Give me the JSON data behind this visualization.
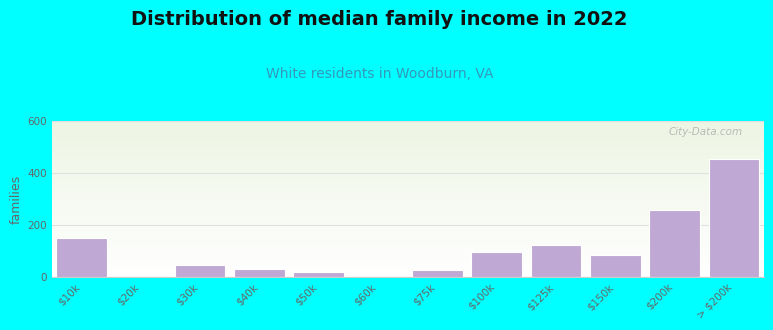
{
  "title": "Distribution of median family income in 2022",
  "subtitle": "White residents in Woodburn, VA",
  "categories": [
    "$10k",
    "$20k",
    "$30k",
    "$40k",
    "$50k",
    "$60k",
    "$75k",
    "$100k",
    "$125k",
    "$150k",
    "$200k",
    "> $200k"
  ],
  "values": [
    150,
    0,
    45,
    28,
    18,
    0,
    25,
    95,
    120,
    85,
    258,
    452
  ],
  "bar_color": "#c0a8d4",
  "bar_edge_color": "#ffffff",
  "background_outer": "#00ffff",
  "title_color": "#111111",
  "subtitle_color": "#3399bb",
  "ylabel": "families",
  "ylim": [
    0,
    600
  ],
  "yticks": [
    0,
    200,
    400,
    600
  ],
  "grid_color": "#e0e0e0",
  "watermark": "City-Data.com",
  "title_fontsize": 14,
  "subtitle_fontsize": 10,
  "ylabel_fontsize": 9,
  "tick_fontsize": 7.5
}
